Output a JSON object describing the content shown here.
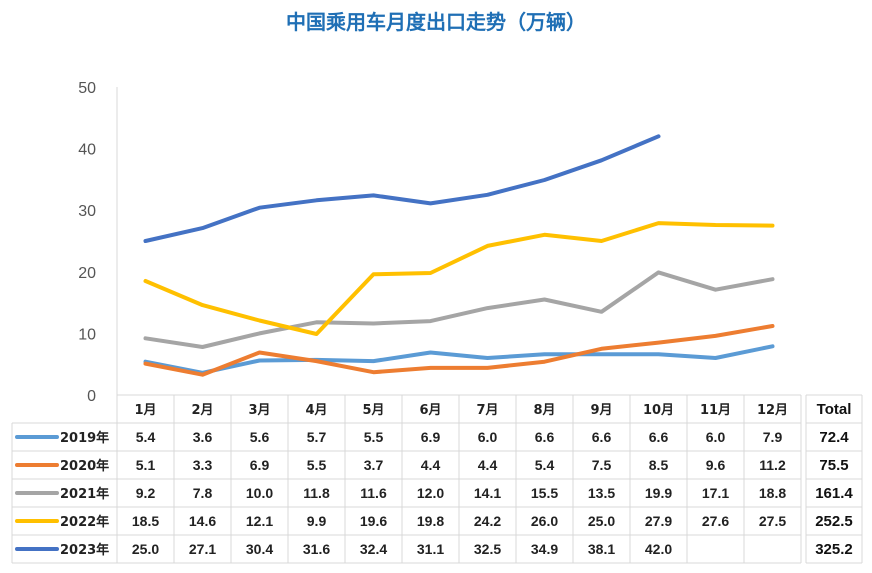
{
  "chart_data": {
    "type": "line",
    "title": "中国乘用车月度出口走势（万辆）",
    "ylim": [
      0,
      50
    ],
    "yticks": [
      "0",
      "10",
      "20",
      "30",
      "40",
      "50"
    ],
    "grid": false,
    "legend_placement": "data-table-below",
    "categories": [
      "1月",
      "2月",
      "3月",
      "4月",
      "5月",
      "6月",
      "7月",
      "8月",
      "9月",
      "10月",
      "11月",
      "12月"
    ],
    "total_header": "Total",
    "series": [
      {
        "name": "2019年",
        "color": "#5b9bd5",
        "values": [
          5.4,
          3.6,
          5.6,
          5.7,
          5.5,
          6.9,
          6.0,
          6.6,
          6.6,
          6.6,
          6.0,
          7.9
        ],
        "labels": [
          "5.4",
          "3.6",
          "5.6",
          "5.7",
          "5.5",
          "6.9",
          "6.0",
          "6.6",
          "6.6",
          "6.6",
          "6.0",
          "7.9"
        ],
        "total": "72.4"
      },
      {
        "name": "2020年",
        "color": "#ed7d31",
        "values": [
          5.1,
          3.3,
          6.9,
          5.5,
          3.7,
          4.4,
          4.4,
          5.4,
          7.5,
          8.5,
          9.6,
          11.2
        ],
        "labels": [
          "5.1",
          "3.3",
          "6.9",
          "5.5",
          "3.7",
          "4.4",
          "4.4",
          "5.4",
          "7.5",
          "8.5",
          "9.6",
          "11.2"
        ],
        "total": "75.5"
      },
      {
        "name": "2021年",
        "color": "#a5a5a5",
        "values": [
          9.2,
          7.8,
          10.0,
          11.8,
          11.6,
          12.0,
          14.1,
          15.5,
          13.5,
          19.9,
          17.1,
          18.8
        ],
        "labels": [
          "9.2",
          "7.8",
          "10.0",
          "11.8",
          "11.6",
          "12.0",
          "14.1",
          "15.5",
          "13.5",
          "19.9",
          "17.1",
          "18.8"
        ],
        "total": "161.4"
      },
      {
        "name": "2022年",
        "color": "#ffc000",
        "values": [
          18.5,
          14.6,
          12.1,
          9.9,
          19.6,
          19.8,
          24.2,
          26.0,
          25.0,
          27.9,
          27.6,
          27.5
        ],
        "labels": [
          "18.5",
          "14.6",
          "12.1",
          "9.9",
          "19.6",
          "19.8",
          "24.2",
          "26.0",
          "25.0",
          "27.9",
          "27.6",
          "27.5"
        ],
        "total": "252.5"
      },
      {
        "name": "2023年",
        "color": "#4472c4",
        "values": [
          25.0,
          27.1,
          30.4,
          31.6,
          32.4,
          31.1,
          32.5,
          34.9,
          38.1,
          42.0,
          null,
          null
        ],
        "labels": [
          "25.0",
          "27.1",
          "30.4",
          "31.6",
          "32.4",
          "31.1",
          "32.5",
          "34.9",
          "38.1",
          "42.0",
          "",
          ""
        ],
        "total": "325.2"
      }
    ]
  }
}
